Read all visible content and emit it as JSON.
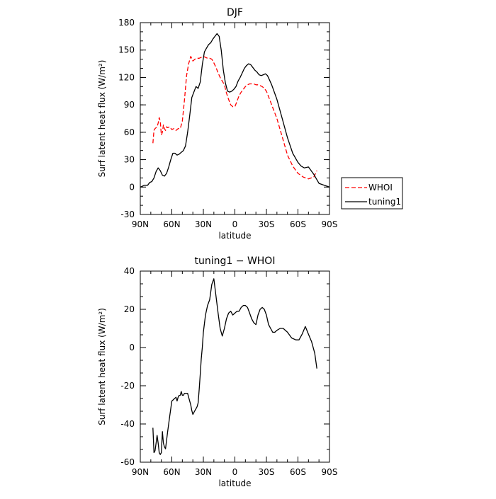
{
  "chart_data": [
    {
      "type": "line",
      "title": "DJF",
      "xlabel": "latitude",
      "ylabel": "Surf latent heat flux (W/m²)",
      "xlim": [
        90,
        -90
      ],
      "ylim": [
        -30,
        180
      ],
      "x_tick_values": [
        90,
        60,
        30,
        0,
        -30,
        -60,
        -90
      ],
      "x_tick_labels": [
        "90N",
        "60N",
        "30N",
        "0",
        "30S",
        "60S",
        "90S"
      ],
      "y_ticks": [
        -30,
        0,
        30,
        60,
        90,
        120,
        150,
        180
      ],
      "legend_position": "right",
      "grid": false,
      "series": [
        {
          "name": "WHOI",
          "color": "#ff0000",
          "dash": "dashed",
          "x": [
            78,
            77,
            76,
            74,
            73,
            72,
            71,
            70,
            69,
            68,
            67,
            66,
            65,
            64,
            62,
            60,
            58,
            56,
            54,
            52,
            50,
            48,
            46,
            44,
            42,
            40,
            38,
            36,
            34,
            32,
            30,
            28,
            26,
            24,
            22,
            20,
            18,
            16,
            14,
            12,
            10,
            8,
            6,
            4,
            2,
            0,
            -2,
            -4,
            -6,
            -8,
            -10,
            -12,
            -14,
            -16,
            -18,
            -20,
            -22,
            -24,
            -26,
            -28,
            -30,
            -33,
            -36,
            -40,
            -45,
            -50,
            -55,
            -60,
            -65,
            -70,
            -75,
            -78
          ],
          "y": [
            48,
            62,
            64,
            66,
            70,
            76,
            72,
            57,
            60,
            68,
            64,
            62,
            66,
            65,
            66,
            63,
            64,
            62,
            64,
            64,
            72,
            95,
            122,
            135,
            143,
            138,
            140,
            141,
            141,
            142,
            143,
            142,
            141,
            141,
            140,
            136,
            131,
            125,
            120,
            116,
            112,
            103,
            96,
            90,
            88,
            88,
            94,
            100,
            104,
            107,
            110,
            112,
            113,
            113,
            113,
            112,
            112,
            111,
            110,
            108,
            105,
            96,
            87,
            75,
            55,
            35,
            23,
            15,
            11,
            9,
            11,
            18
          ]
        },
        {
          "name": "tuning1",
          "color": "#000000",
          "dash": "solid",
          "x": [
            90,
            86,
            83,
            81,
            79,
            77,
            75,
            73,
            71,
            69,
            67,
            65,
            63,
            61,
            59,
            57,
            55,
            53,
            51,
            49,
            47,
            45,
            43,
            41,
            39,
            37,
            35,
            33,
            31,
            29,
            27,
            25,
            23,
            21,
            19,
            17,
            15,
            13,
            11,
            9,
            7,
            5,
            3,
            1,
            -1,
            -3,
            -5,
            -7,
            -9,
            -11,
            -13,
            -15,
            -17,
            -19,
            -21,
            -23,
            -25,
            -27,
            -29,
            -31,
            -33,
            -35,
            -40,
            -45,
            -50,
            -55,
            -60,
            -63,
            -66,
            -70,
            -75,
            -80,
            -85,
            -90
          ],
          "y": [
            0,
            2,
            2,
            5,
            6,
            10,
            17,
            21,
            18,
            13,
            12,
            15,
            22,
            30,
            37,
            37,
            35,
            36,
            38,
            40,
            45,
            60,
            78,
            98,
            104,
            110,
            108,
            115,
            134,
            148,
            152,
            156,
            158,
            162,
            165,
            168,
            165,
            150,
            128,
            114,
            105,
            104,
            105,
            107,
            110,
            116,
            120,
            125,
            130,
            133,
            135,
            134,
            131,
            128,
            126,
            123,
            122,
            123,
            124,
            122,
            117,
            112,
            96,
            75,
            54,
            37,
            27,
            23,
            21,
            22,
            14,
            4,
            2,
            0
          ]
        }
      ]
    },
    {
      "type": "line",
      "title": "tuning1 − WHOI",
      "xlabel": "latitude",
      "ylabel": "Surf latent heat flux (W/m²)",
      "xlim": [
        90,
        -90
      ],
      "ylim": [
        -60,
        40
      ],
      "x_tick_values": [
        90,
        60,
        30,
        0,
        -30,
        -60,
        -90
      ],
      "x_tick_labels": [
        "90N",
        "60N",
        "30N",
        "0",
        "30S",
        "60S",
        "90S"
      ],
      "y_ticks": [
        -60,
        -40,
        -20,
        0,
        20,
        40
      ],
      "grid": false,
      "series": [
        {
          "color": "#000000",
          "dash": "solid",
          "x": [
            78,
            77,
            76,
            75,
            74,
            73,
            72,
            71,
            70,
            69,
            68,
            67,
            66,
            64,
            62,
            60,
            58,
            56,
            55,
            54,
            53,
            52,
            51,
            50,
            49,
            48,
            47,
            45,
            44,
            43,
            42,
            41,
            40,
            39,
            38,
            37,
            36,
            35,
            34,
            33,
            32,
            31,
            30,
            28,
            26,
            24,
            22,
            20,
            18,
            16,
            14,
            12,
            10,
            8,
            6,
            4,
            2,
            0,
            -2,
            -4,
            -6,
            -8,
            -10,
            -12,
            -14,
            -16,
            -18,
            -20,
            -22,
            -24,
            -26,
            -28,
            -30,
            -32,
            -34,
            -36,
            -38,
            -40,
            -43,
            -46,
            -50,
            -54,
            -58,
            -61,
            -64,
            -67,
            -70,
            -73,
            -76,
            -78
          ],
          "y": [
            -42,
            -55,
            -54,
            -50,
            -46,
            -50,
            -55,
            -56,
            -55,
            -44,
            -50,
            -52,
            -53,
            -44,
            -36,
            -28,
            -27,
            -26,
            -28,
            -26,
            -25,
            -25,
            -23,
            -25,
            -25,
            -24,
            -24,
            -24,
            -26,
            -28,
            -30,
            -33,
            -35,
            -34,
            -33,
            -32,
            -31,
            -29,
            -22,
            -14,
            -6,
            0,
            8,
            17,
            22,
            25,
            33,
            36,
            27,
            18,
            10,
            6,
            10,
            15,
            18,
            19,
            17,
            18,
            19,
            19,
            21,
            22,
            22,
            21,
            18,
            15,
            13,
            12,
            17,
            20,
            21,
            20,
            17,
            12,
            10,
            8,
            8,
            9,
            10,
            10,
            8,
            5,
            4,
            4,
            7,
            11,
            7,
            3,
            -3,
            -11
          ]
        }
      ]
    }
  ]
}
